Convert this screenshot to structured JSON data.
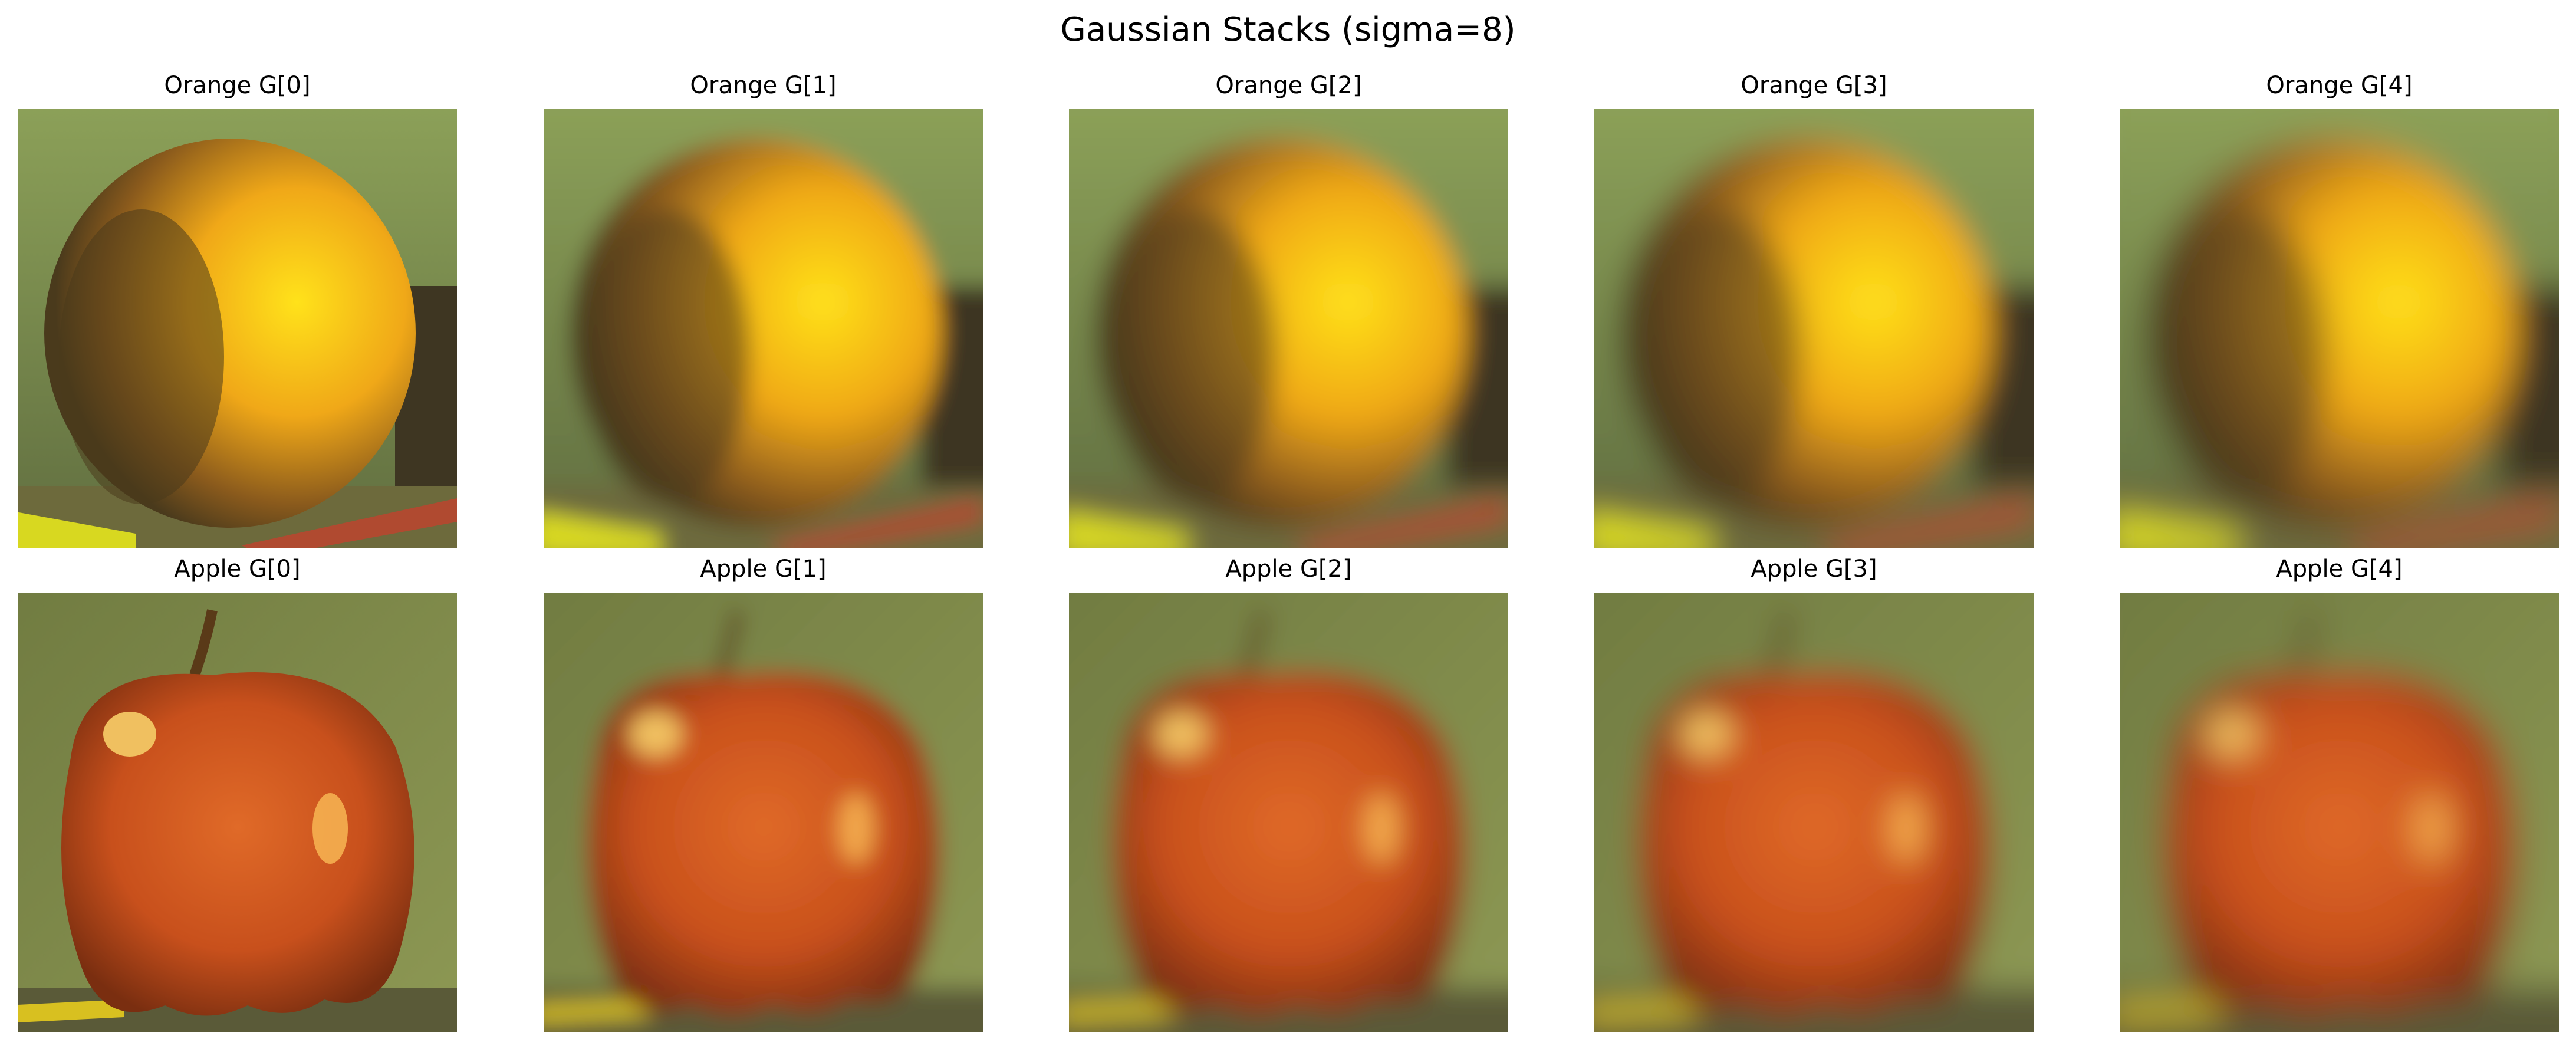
{
  "figure": {
    "title": "Gaussian Stacks (sigma=8)"
  },
  "rows": [
    {
      "subject": "orange",
      "panels": [
        {
          "title": "Orange G[0]",
          "blur": 0
        },
        {
          "title": "Orange G[1]",
          "blur": 1
        },
        {
          "title": "Orange G[2]",
          "blur": 2
        },
        {
          "title": "Orange G[3]",
          "blur": 3
        },
        {
          "title": "Orange G[4]",
          "blur": 4
        }
      ]
    },
    {
      "subject": "apple",
      "panels": [
        {
          "title": "Apple G[0]",
          "blur": 0
        },
        {
          "title": "Apple G[1]",
          "blur": 1
        },
        {
          "title": "Apple G[2]",
          "blur": 2
        },
        {
          "title": "Apple G[3]",
          "blur": 3
        },
        {
          "title": "Apple G[4]",
          "blur": 4
        }
      ]
    }
  ],
  "colors": {
    "orange_bg": "#7f8a4e",
    "orange_fruit": "#f0a818",
    "orange_shadow": "#4a3a1c",
    "apple_bg": "#8f9a55",
    "apple_fruit": "#c8501c",
    "apple_highlight": "#f0c060"
  }
}
